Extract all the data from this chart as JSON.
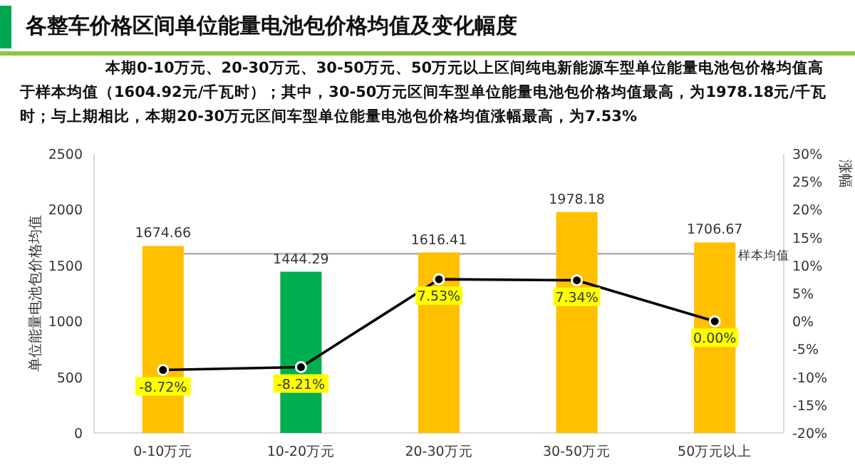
{
  "chart_data": {
    "type": "bar",
    "title": "各整车价格区间单位能量电池包价格均值及变化幅度",
    "annotations": [
      "本期0-10万元、20-30万元、30-50万元、50万元以上区间纯电新能源车型单位能量电池包价格均值高于样本均值（1604.92元/千瓦时）；其中，30-50万元区间车型单位能量电池包价格均值最高，为1978.18元/千瓦时；与上期相比，本期20-30万元区间车型单位能量电池包价格均值涨幅最高，为7.53%"
    ],
    "ylabel": "单位能量电池包价格均值",
    "y2label": "涨幅",
    "categories": [
      "0-10万元",
      "10-20万元",
      "20-30万元",
      "30-50万元",
      "50万元以上"
    ],
    "series": [
      {
        "colors": [
          "#ffc000",
          "#00b050",
          "#ffc000",
          "#ffc000",
          "#ffc000"
        ],
        "values": [
          1674.66,
          1444.29,
          1616.41,
          1978.18,
          1706.67
        ],
        "value_labels": [
          "1674.66",
          "1444.29",
          "1616.41",
          "1978.18",
          "1706.67"
        ]
      },
      {
        "type": "line",
        "axis": "y2",
        "color": "#000000",
        "marker": "circle",
        "values": [
          -8.72,
          -8.21,
          7.53,
          7.34,
          0.0
        ],
        "value_labels": [
          "-8.72%",
          "-8.21%",
          "7.53%",
          "7.34%",
          "0.00%"
        ]
      }
    ],
    "ylim": [
      0,
      2500
    ],
    "yticks": [
      0,
      500,
      1000,
      1500,
      2000,
      2500
    ],
    "y2lim": [
      -20,
      30
    ],
    "y2ticks": [
      {
        "value": -20,
        "label": "-20%"
      },
      {
        "value": -15,
        "label": "-15%"
      },
      {
        "value": -10,
        "label": "-10%"
      },
      {
        "value": -5,
        "label": "-5%"
      },
      {
        "value": 0,
        "label": "0%"
      },
      {
        "value": 5,
        "label": "5%"
      },
      {
        "value": 10,
        "label": "10%"
      },
      {
        "value": 15,
        "label": "15%"
      },
      {
        "value": 20,
        "label": "20%"
      },
      {
        "value": 25,
        "label": "25%"
      },
      {
        "value": 30,
        "label": "30%"
      }
    ],
    "ref_lines": [
      {
        "axis": "y",
        "value": 1604.92,
        "label": "样本均值",
        "color": "#a6a6a6"
      }
    ],
    "grid": false
  }
}
